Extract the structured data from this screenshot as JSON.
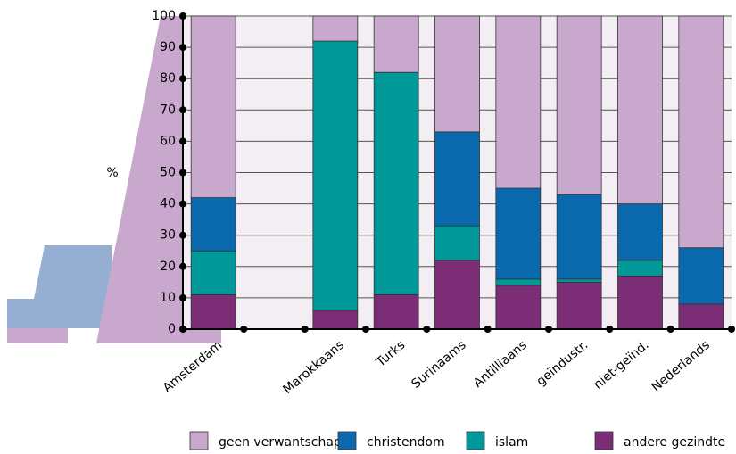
{
  "chart_data": {
    "type": "bar",
    "stacked": true,
    "y_label": "%",
    "categories": [
      "Amsterdam",
      null,
      "Marokkaans",
      "Turks",
      "Surinaams",
      "Antilliaans",
      "geïndustr.",
      "niet-geïnd.",
      "Nederlands"
    ],
    "series": [
      {
        "name": "geen verwantschap",
        "color": "#c8a8cc",
        "values": [
          58,
          null,
          8,
          18,
          37,
          55,
          57,
          60,
          74
        ]
      },
      {
        "name": "christendom",
        "color": "#0a68ad",
        "values": [
          17,
          null,
          0,
          0,
          30,
          29,
          27,
          18,
          18
        ]
      },
      {
        "name": "islam",
        "color": "#009898",
        "values": [
          14,
          null,
          86,
          71,
          11,
          2,
          1,
          5,
          0
        ]
      },
      {
        "name": "andere gezindte",
        "color": "#7b2d75",
        "values": [
          11,
          null,
          6,
          11,
          22,
          14,
          15,
          17,
          8
        ]
      }
    ],
    "ylim": [
      0,
      100
    ],
    "yticks": [
      0,
      10,
      20,
      30,
      40,
      50,
      60,
      70,
      80,
      90,
      100
    ],
    "grid": true
  }
}
